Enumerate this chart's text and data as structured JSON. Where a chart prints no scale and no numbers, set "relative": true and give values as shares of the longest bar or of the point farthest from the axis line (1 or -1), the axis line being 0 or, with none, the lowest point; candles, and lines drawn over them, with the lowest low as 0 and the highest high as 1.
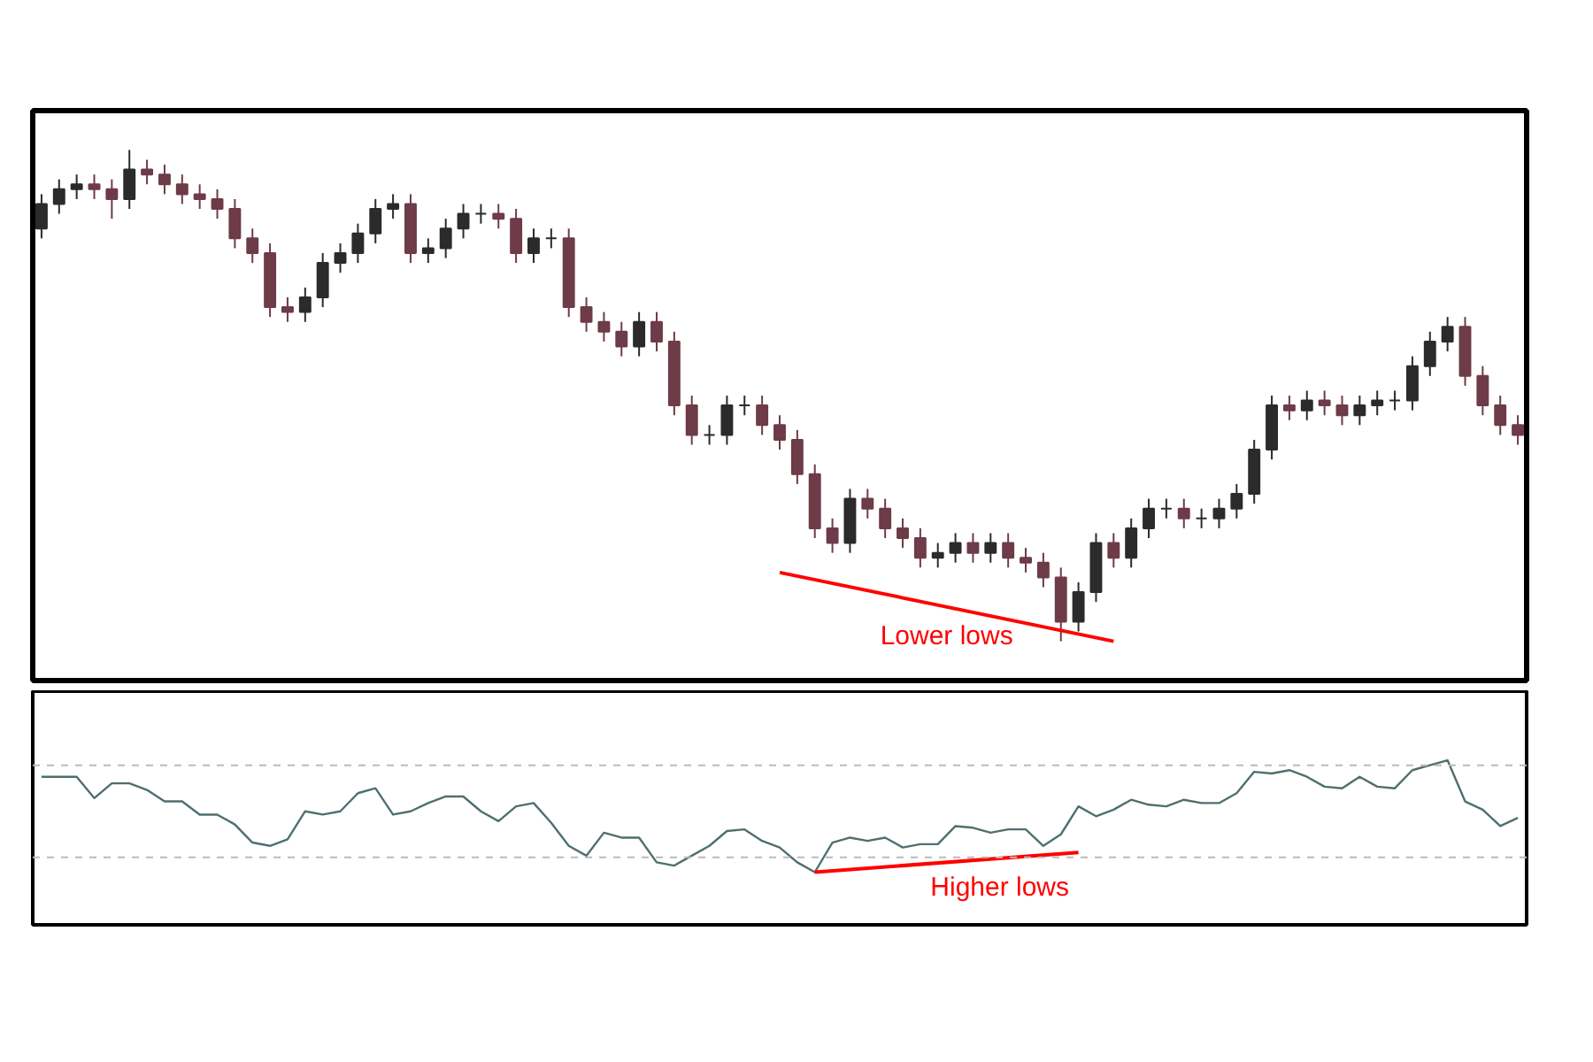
{
  "chart_data": [
    {
      "type": "candlestick",
      "relative": true,
      "grid": false,
      "annotations": [
        "Lower lows"
      ],
      "categories": [
        null,
        null,
        null,
        null,
        null,
        null,
        null,
        null,
        null,
        null,
        null,
        null,
        null,
        null,
        null,
        null,
        null,
        null,
        null,
        null,
        null,
        null,
        null,
        null,
        null,
        null,
        null,
        null,
        null,
        null,
        null,
        null,
        null,
        null,
        null,
        null,
        null,
        null,
        null,
        null,
        null,
        null,
        null,
        null,
        null,
        null,
        null,
        null,
        null,
        null,
        null,
        null,
        null,
        null,
        null,
        null,
        null,
        null,
        null,
        null,
        null,
        null,
        null,
        null,
        null,
        null,
        null,
        null,
        null,
        null,
        null,
        null,
        null,
        null,
        null,
        null,
        null,
        null,
        null,
        null,
        null,
        null,
        null,
        null,
        null
      ],
      "series": [
        {
          "type": "candlestick",
          "colors": [
            "#2b2b2b",
            "#2b2b2b",
            "#2b2b2b",
            "#6e3b48",
            "#6e3b48",
            "#2b2b2b",
            "#6e3b48",
            "#6e3b48",
            "#6e3b48",
            "#6e3b48",
            "#6e3b48",
            "#6e3b48",
            "#6e3b48",
            "#6e3b48",
            "#6e3b48",
            "#2b2b2b",
            "#2b2b2b",
            "#2b2b2b",
            "#2b2b2b",
            "#2b2b2b",
            "#2b2b2b",
            "#6e3b48",
            "#2b2b2b",
            "#2b2b2b",
            "#2b2b2b",
            "#2b2b2b",
            "#6e3b48",
            "#6e3b48",
            "#2b2b2b",
            "#2b2b2b",
            "#6e3b48",
            "#6e3b48",
            "#6e3b48",
            "#6e3b48",
            "#2b2b2b",
            "#6e3b48",
            "#6e3b48",
            "#6e3b48",
            "#2b2b2b",
            "#2b2b2b",
            "#2b2b2b",
            "#6e3b48",
            "#6e3b48",
            "#6e3b48",
            "#6e3b48",
            "#6e3b48",
            "#2b2b2b",
            "#6e3b48",
            "#6e3b48",
            "#6e3b48",
            "#6e3b48",
            "#2b2b2b",
            "#2b2b2b",
            "#6e3b48",
            "#2b2b2b",
            "#6e3b48",
            "#6e3b48",
            "#6e3b48",
            "#6e3b48",
            "#2b2b2b",
            "#2b2b2b",
            "#6e3b48",
            "#2b2b2b",
            "#2b2b2b",
            "#2b2b2b",
            "#6e3b48",
            "#2b2b2b",
            "#2b2b2b",
            "#2b2b2b",
            "#2b2b2b",
            "#2b2b2b",
            "#6e3b48",
            "#2b2b2b",
            "#6e3b48",
            "#6e3b48",
            "#2b2b2b",
            "#2b2b2b",
            "#2b2b2b",
            "#2b2b2b",
            "#2b2b2b",
            "#2b2b2b",
            "#6e3b48",
            "#6e3b48",
            "#6e3b48",
            "#6e3b48"
          ],
          "ohlc": [
            [
              0.84,
              0.91,
              0.82,
              0.89
            ],
            [
              0.89,
              0.94,
              0.87,
              0.92
            ],
            [
              0.92,
              0.95,
              0.9,
              0.93
            ],
            [
              0.93,
              0.95,
              0.9,
              0.92
            ],
            [
              0.92,
              0.94,
              0.86,
              0.9
            ],
            [
              0.9,
              1.0,
              0.88,
              0.96
            ],
            [
              0.96,
              0.98,
              0.93,
              0.95
            ],
            [
              0.95,
              0.97,
              0.91,
              0.93
            ],
            [
              0.93,
              0.95,
              0.89,
              0.91
            ],
            [
              0.91,
              0.93,
              0.88,
              0.9
            ],
            [
              0.9,
              0.92,
              0.86,
              0.88
            ],
            [
              0.88,
              0.9,
              0.8,
              0.82
            ],
            [
              0.82,
              0.84,
              0.77,
              0.79
            ],
            [
              0.79,
              0.81,
              0.66,
              0.68
            ],
            [
              0.68,
              0.7,
              0.65,
              0.67
            ],
            [
              0.67,
              0.72,
              0.65,
              0.7
            ],
            [
              0.7,
              0.79,
              0.68,
              0.77
            ],
            [
              0.77,
              0.81,
              0.75,
              0.79
            ],
            [
              0.79,
              0.85,
              0.77,
              0.83
            ],
            [
              0.83,
              0.9,
              0.81,
              0.88
            ],
            [
              0.88,
              0.91,
              0.86,
              0.89
            ],
            [
              0.89,
              0.91,
              0.77,
              0.79
            ],
            [
              0.79,
              0.82,
              0.77,
              0.8
            ],
            [
              0.8,
              0.86,
              0.78,
              0.84
            ],
            [
              0.84,
              0.89,
              0.82,
              0.87
            ],
            [
              0.87,
              0.89,
              0.85,
              0.87
            ],
            [
              0.87,
              0.89,
              0.84,
              0.86
            ],
            [
              0.86,
              0.88,
              0.77,
              0.79
            ],
            [
              0.79,
              0.84,
              0.77,
              0.82
            ],
            [
              0.82,
              0.84,
              0.8,
              0.82
            ],
            [
              0.82,
              0.84,
              0.66,
              0.68
            ],
            [
              0.68,
              0.7,
              0.63,
              0.65
            ],
            [
              0.65,
              0.67,
              0.61,
              0.63
            ],
            [
              0.63,
              0.65,
              0.58,
              0.6
            ],
            [
              0.6,
              0.67,
              0.58,
              0.65
            ],
            [
              0.65,
              0.67,
              0.59,
              0.61
            ],
            [
              0.61,
              0.63,
              0.46,
              0.48
            ],
            [
              0.48,
              0.5,
              0.4,
              0.42
            ],
            [
              0.42,
              0.44,
              0.4,
              0.42
            ],
            [
              0.42,
              0.5,
              0.4,
              0.48
            ],
            [
              0.48,
              0.5,
              0.46,
              0.48
            ],
            [
              0.48,
              0.5,
              0.42,
              0.44
            ],
            [
              0.44,
              0.46,
              0.39,
              0.41
            ],
            [
              0.41,
              0.43,
              0.32,
              0.34
            ],
            [
              0.34,
              0.36,
              0.21,
              0.23
            ],
            [
              0.23,
              0.25,
              0.18,
              0.2
            ],
            [
              0.2,
              0.31,
              0.18,
              0.29
            ],
            [
              0.29,
              0.31,
              0.25,
              0.27
            ],
            [
              0.27,
              0.29,
              0.21,
              0.23
            ],
            [
              0.23,
              0.25,
              0.19,
              0.21
            ],
            [
              0.21,
              0.23,
              0.15,
              0.17
            ],
            [
              0.17,
              0.2,
              0.15,
              0.18
            ],
            [
              0.18,
              0.22,
              0.16,
              0.2
            ],
            [
              0.2,
              0.22,
              0.16,
              0.18
            ],
            [
              0.18,
              0.22,
              0.16,
              0.2
            ],
            [
              0.2,
              0.22,
              0.15,
              0.17
            ],
            [
              0.17,
              0.19,
              0.14,
              0.16
            ],
            [
              0.16,
              0.18,
              0.11,
              0.13
            ],
            [
              0.13,
              0.15,
              0.0,
              0.04
            ],
            [
              0.04,
              0.12,
              0.02,
              0.1
            ],
            [
              0.1,
              0.22,
              0.08,
              0.2
            ],
            [
              0.2,
              0.22,
              0.15,
              0.17
            ],
            [
              0.17,
              0.25,
              0.15,
              0.23
            ],
            [
              0.23,
              0.29,
              0.21,
              0.27
            ],
            [
              0.27,
              0.29,
              0.25,
              0.27
            ],
            [
              0.27,
              0.29,
              0.23,
              0.25
            ],
            [
              0.25,
              0.27,
              0.23,
              0.25
            ],
            [
              0.25,
              0.29,
              0.23,
              0.27
            ],
            [
              0.27,
              0.32,
              0.25,
              0.3
            ],
            [
              0.3,
              0.41,
              0.28,
              0.39
            ],
            [
              0.39,
              0.5,
              0.37,
              0.48
            ],
            [
              0.48,
              0.5,
              0.45,
              0.47
            ],
            [
              0.47,
              0.51,
              0.45,
              0.49
            ],
            [
              0.49,
              0.51,
              0.46,
              0.48
            ],
            [
              0.48,
              0.5,
              0.44,
              0.46
            ],
            [
              0.46,
              0.5,
              0.44,
              0.48
            ],
            [
              0.48,
              0.51,
              0.46,
              0.49
            ],
            [
              0.49,
              0.51,
              0.47,
              0.49
            ],
            [
              0.49,
              0.58,
              0.47,
              0.56
            ],
            [
              0.56,
              0.63,
              0.54,
              0.61
            ],
            [
              0.61,
              0.66,
              0.59,
              0.64
            ],
            [
              0.64,
              0.66,
              0.52,
              0.54
            ],
            [
              0.54,
              0.56,
              0.46,
              0.48
            ],
            [
              0.48,
              0.5,
              0.42,
              0.44
            ],
            [
              0.44,
              0.46,
              0.4,
              0.42
            ]
          ]
        },
        {
          "type": "line",
          "color": "#ff0000",
          "values": [
            null,
            null,
            null,
            null,
            null,
            null,
            null,
            null,
            null,
            null,
            null,
            null,
            null,
            null,
            null,
            null,
            null,
            null,
            null,
            null,
            null,
            null,
            null,
            null,
            null,
            null,
            null,
            null,
            null,
            null,
            null,
            null,
            null,
            null,
            null,
            null,
            null,
            null,
            null,
            null,
            null,
            null,
            0.14,
            null,
            null,
            null,
            null,
            null,
            null,
            null,
            null,
            null,
            null,
            null,
            null,
            null,
            null,
            null,
            null,
            null,
            null,
            0.0,
            null,
            null,
            null,
            null,
            null,
            null,
            null,
            null,
            null,
            null,
            null,
            null,
            null,
            null,
            null,
            null,
            null,
            null,
            null,
            null,
            null,
            null,
            null
          ]
        }
      ]
    },
    {
      "type": "line",
      "relative": true,
      "grid": false,
      "annotations": [
        "Higher lows"
      ],
      "categories": [
        null,
        null,
        null,
        null,
        null,
        null,
        null,
        null,
        null,
        null,
        null,
        null,
        null,
        null,
        null,
        null,
        null,
        null,
        null,
        null,
        null,
        null,
        null,
        null,
        null,
        null,
        null,
        null,
        null,
        null,
        null,
        null,
        null,
        null,
        null,
        null,
        null,
        null,
        null,
        null,
        null,
        null,
        null,
        null,
        null,
        null,
        null,
        null,
        null,
        null,
        null,
        null,
        null,
        null,
        null,
        null,
        null,
        null,
        null,
        null,
        null,
        null,
        null,
        null,
        null,
        null,
        null,
        null,
        null,
        null,
        null,
        null,
        null,
        null,
        null,
        null,
        null,
        null,
        null,
        null,
        null,
        null,
        null,
        null,
        null
      ],
      "ref_lines": [
        {
          "axis": "y",
          "value": 0.97,
          "label": null,
          "color": "#bbbbbb",
          "line_style": "dashed"
        },
        {
          "axis": "y",
          "value": 0.41,
          "label": null,
          "color": "#bbbbbb",
          "line_style": "dashed"
        }
      ],
      "series": [
        {
          "type": "line",
          "color": "#4f6f6f",
          "values": [
            0.9,
            0.9,
            0.9,
            0.77,
            0.86,
            0.86,
            0.82,
            0.75,
            0.75,
            0.67,
            0.67,
            0.61,
            0.5,
            0.48,
            0.52,
            0.69,
            0.67,
            0.69,
            0.8,
            0.83,
            0.67,
            0.69,
            0.74,
            0.78,
            0.78,
            0.69,
            0.63,
            0.72,
            0.74,
            0.62,
            0.48,
            0.42,
            0.56,
            0.53,
            0.53,
            0.38,
            0.36,
            0.42,
            0.48,
            0.57,
            0.58,
            0.51,
            0.47,
            0.38,
            0.32,
            0.5,
            0.53,
            0.51,
            0.53,
            0.47,
            0.49,
            0.49,
            0.6,
            0.59,
            0.56,
            0.58,
            0.58,
            0.48,
            0.55,
            0.72,
            0.66,
            0.7,
            0.76,
            0.73,
            0.72,
            0.76,
            0.74,
            0.74,
            0.8,
            0.93,
            0.92,
            0.94,
            0.9,
            0.84,
            0.83,
            0.9,
            0.84,
            0.83,
            0.94,
            0.97,
            1.0,
            0.75,
            0.7,
            0.6,
            0.65
          ]
        },
        {
          "type": "line",
          "color": "#ff0000",
          "values": [
            null,
            null,
            null,
            null,
            null,
            null,
            null,
            null,
            null,
            null,
            null,
            null,
            null,
            null,
            null,
            null,
            null,
            null,
            null,
            null,
            null,
            null,
            null,
            null,
            null,
            null,
            null,
            null,
            null,
            null,
            null,
            null,
            null,
            null,
            null,
            null,
            null,
            null,
            null,
            null,
            null,
            null,
            null,
            null,
            0.32,
            null,
            null,
            null,
            null,
            null,
            null,
            null,
            null,
            null,
            null,
            null,
            null,
            null,
            null,
            0.44,
            null,
            null,
            null,
            null,
            null,
            null,
            null,
            null,
            null,
            null,
            null,
            null,
            null,
            null,
            null,
            null,
            null,
            null,
            null,
            null,
            null,
            null,
            null,
            null,
            null
          ]
        }
      ]
    }
  ]
}
